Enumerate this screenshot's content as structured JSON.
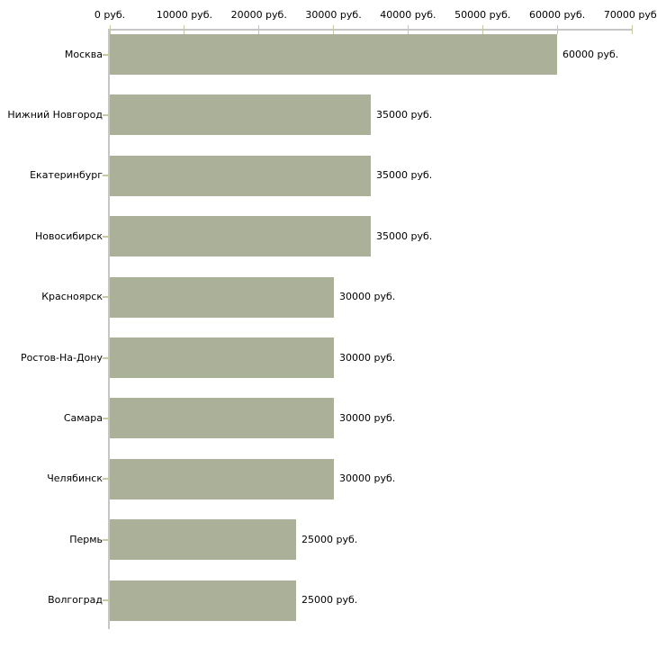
{
  "chart_data": {
    "type": "bar",
    "orientation": "horizontal",
    "title": "",
    "xlabel": "",
    "ylabel": "",
    "unit": "руб.",
    "xlim": [
      0,
      70000
    ],
    "x_tick_step": 10000,
    "x_tick_labels": [
      "0 руб.",
      "10000 руб.",
      "20000 руб.",
      "30000 руб.",
      "40000 руб.",
      "50000 руб.",
      "60000 руб.",
      "70000 руб."
    ],
    "categories": [
      "Москва",
      "Нижний Новгород",
      "Екатеринбург",
      "Новосибирск",
      "Красноярск",
      "Ростов-На-Дону",
      "Самара",
      "Челябинск",
      "Пермь",
      "Волгоград"
    ],
    "values": [
      60000,
      35000,
      35000,
      35000,
      30000,
      30000,
      30000,
      30000,
      25000,
      25000
    ],
    "value_labels": [
      "60000 руб.",
      "35000 руб.",
      "35000 руб.",
      "35000 руб.",
      "30000 руб.",
      "30000 руб.",
      "30000 руб.",
      "30000 руб.",
      "25000 руб.",
      "25000 руб."
    ],
    "legend_position": "none",
    "grid": false,
    "colors": {
      "bar": "#abb199",
      "axis": "#c6c6c6",
      "tick": "#c8c8a3",
      "text": "#000000",
      "background": "#ffffff"
    }
  }
}
